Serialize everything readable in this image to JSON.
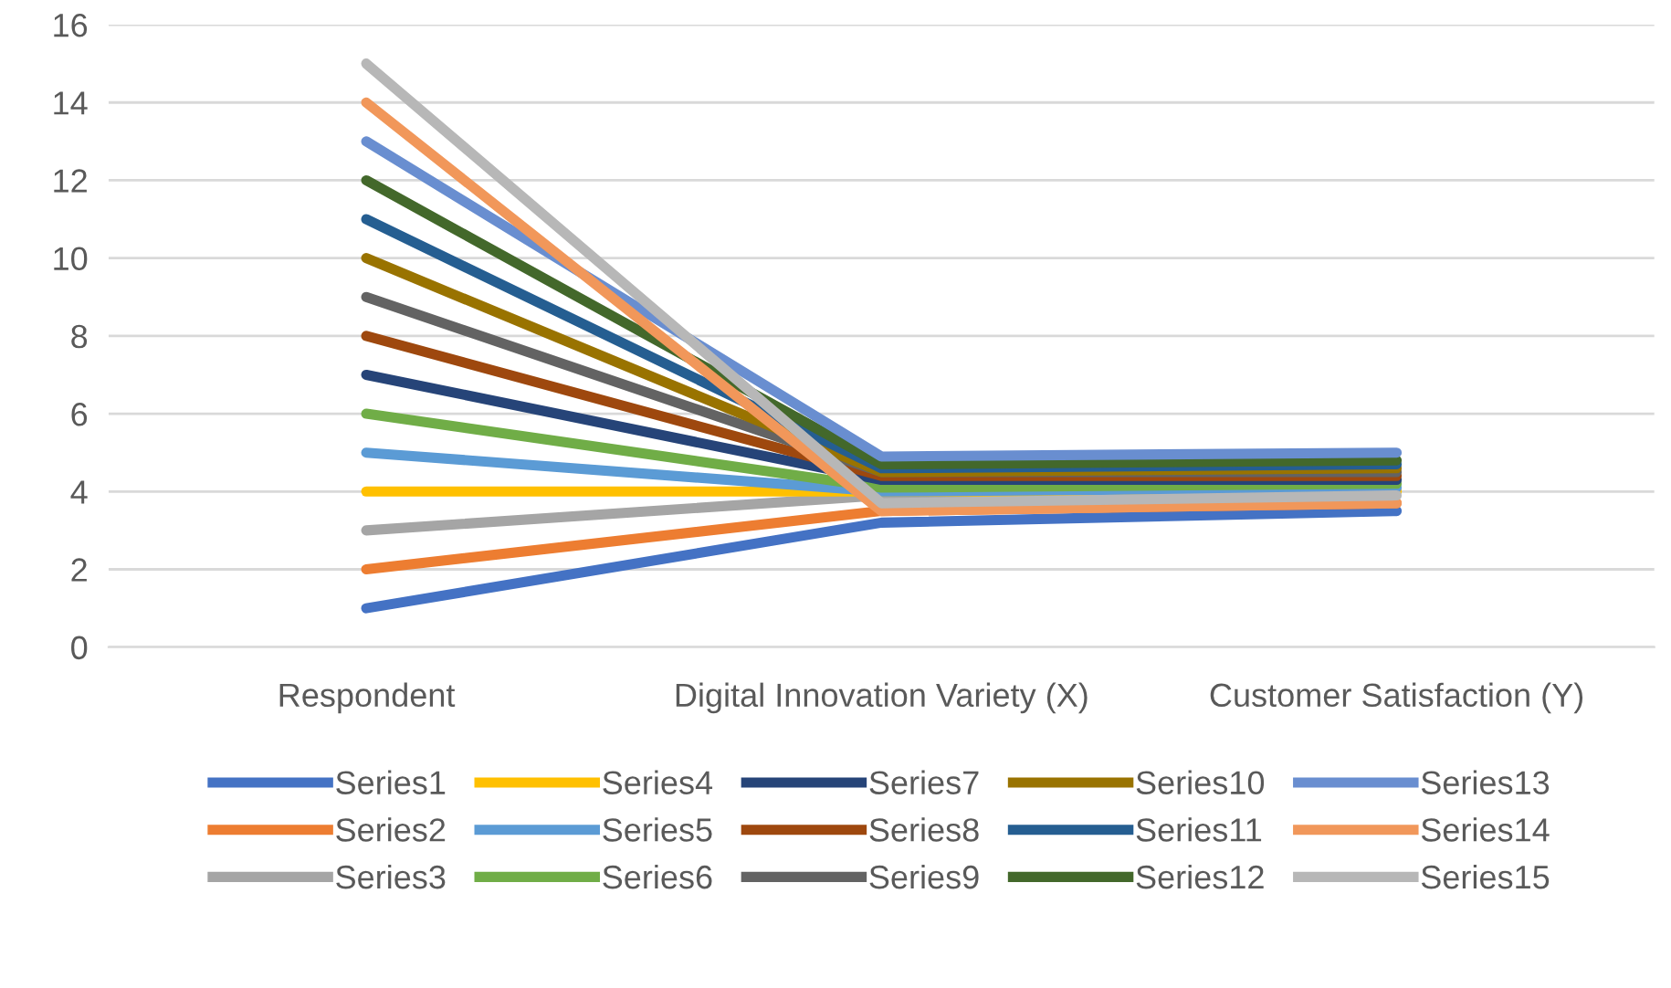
{
  "chart_data": {
    "type": "line",
    "categories": [
      "Respondent",
      "Digital Innovation Variety (X)",
      "Customer Satisfaction (Y)"
    ],
    "ylim": [
      0,
      16
    ],
    "yticks": [
      0,
      2,
      4,
      6,
      8,
      10,
      12,
      14,
      16
    ],
    "grid": "y",
    "legend": "bottom",
    "marker": "none",
    "line_style": "solid",
    "series": [
      {
        "name": "Series1",
        "color": "#4472c4",
        "values": [
          1,
          3.2,
          3.5
        ]
      },
      {
        "name": "Series2",
        "color": "#ed7d31",
        "values": [
          2,
          3.5,
          3.7
        ]
      },
      {
        "name": "Series3",
        "color": "#a5a5a5",
        "values": [
          3,
          3.9,
          4.0
        ]
      },
      {
        "name": "Series4",
        "color": "#ffc000",
        "values": [
          4,
          4.0,
          4.0
        ]
      },
      {
        "name": "Series5",
        "color": "#5b9bd5",
        "values": [
          5,
          4.0,
          4.1
        ]
      },
      {
        "name": "Series6",
        "color": "#70ad47",
        "values": [
          6,
          4.1,
          4.2
        ]
      },
      {
        "name": "Series7",
        "color": "#264478",
        "values": [
          7,
          4.3,
          4.3
        ]
      },
      {
        "name": "Series8",
        "color": "#9e480e",
        "values": [
          8,
          4.4,
          4.4
        ]
      },
      {
        "name": "Series9",
        "color": "#636363",
        "values": [
          9,
          4.5,
          4.5
        ]
      },
      {
        "name": "Series10",
        "color": "#997300",
        "values": [
          10,
          4.5,
          4.6
        ]
      },
      {
        "name": "Series11",
        "color": "#255e91",
        "values": [
          11,
          4.6,
          4.7
        ]
      },
      {
        "name": "Series12",
        "color": "#43682b",
        "values": [
          12,
          4.7,
          4.8
        ]
      },
      {
        "name": "Series13",
        "color": "#698ed0",
        "values": [
          13,
          4.9,
          5.0
        ]
      },
      {
        "name": "Series14",
        "color": "#f1975a",
        "values": [
          14,
          3.5,
          3.7
        ]
      },
      {
        "name": "Series15",
        "color": "#b7b7b7",
        "values": [
          15,
          3.7,
          3.9
        ]
      }
    ]
  }
}
